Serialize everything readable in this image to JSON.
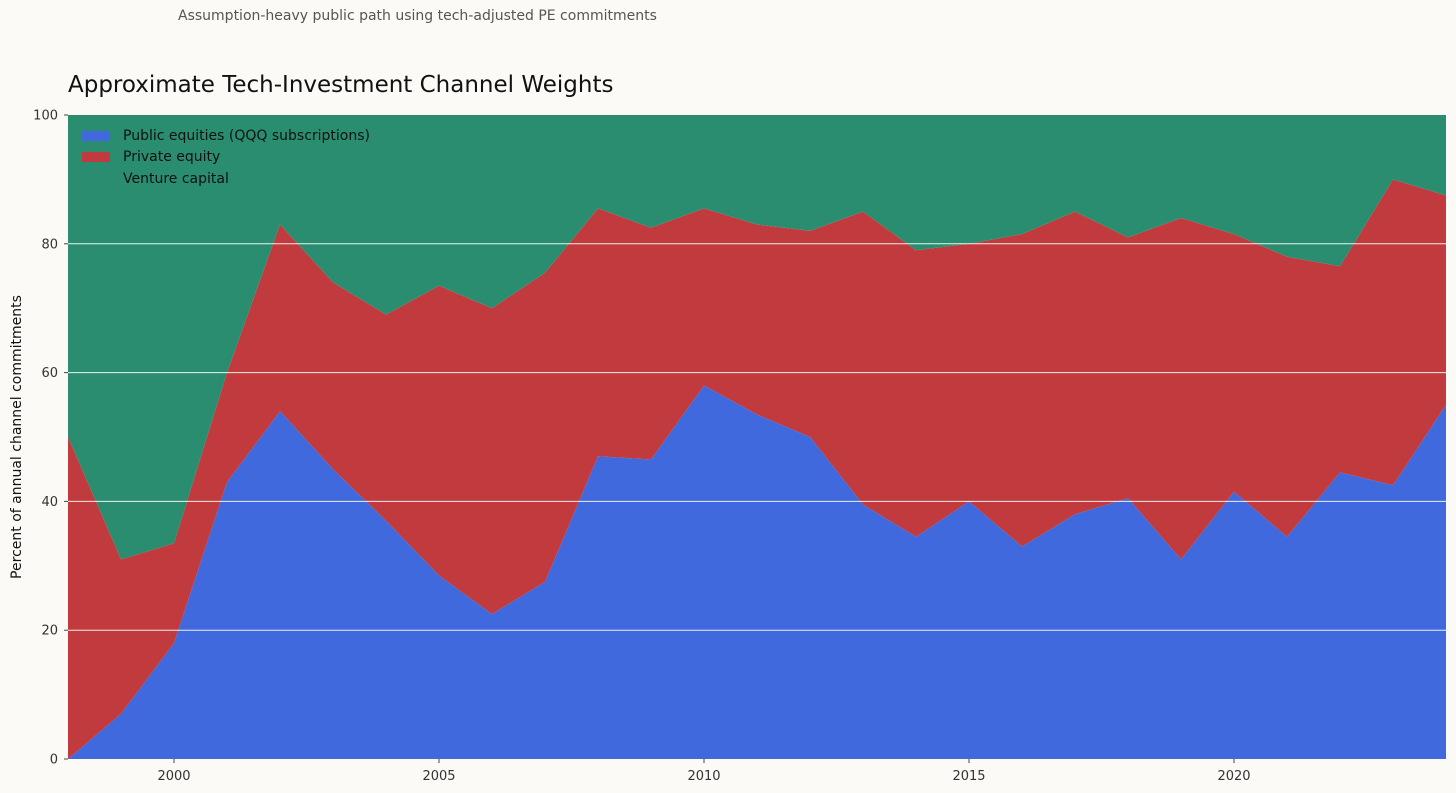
{
  "header": {
    "subtitle": "Assumption-heavy public path using tech-adjusted PE commitments"
  },
  "chart_data": {
    "type": "area",
    "stacked": true,
    "title": "Approximate Tech-Investment Channel Weights",
    "xlabel": "",
    "ylabel": "Percent of annual channel commitments",
    "x": [
      1998,
      1999,
      2000,
      2001,
      2002,
      2003,
      2004,
      2005,
      2006,
      2007,
      2008,
      2009,
      2010,
      2011,
      2012,
      2013,
      2014,
      2015,
      2016,
      2017,
      2018,
      2019,
      2020,
      2021,
      2022,
      2023,
      2024
    ],
    "xlim": [
      1998,
      2024
    ],
    "ylim": [
      0,
      100
    ],
    "xticks": [
      2000,
      2005,
      2010,
      2015,
      2020
    ],
    "yticks": [
      0,
      20,
      40,
      60,
      80,
      100
    ],
    "grid": "horizontal",
    "legend_position": "top-left",
    "series": [
      {
        "name": "Public equities (QQQ subscriptions)",
        "color": "#3f69dc",
        "values": [
          0,
          7,
          18,
          43,
          54,
          45,
          37,
          28.5,
          22.5,
          27.5,
          47,
          46.5,
          58,
          53.5,
          50,
          39.5,
          34.5,
          40,
          33,
          38,
          40.5,
          31,
          41.5,
          34.5,
          44.5,
          42.5,
          55
        ]
      },
      {
        "name": "Private equity",
        "color": "#c13b3e",
        "values": [
          50,
          24,
          15.5,
          17,
          29,
          29,
          32,
          45,
          47.5,
          48,
          38.5,
          36,
          27.5,
          29.5,
          32,
          45.5,
          44.5,
          40,
          48.5,
          47,
          40.5,
          53,
          40,
          43.5,
          32,
          47.5,
          32.5
        ]
      },
      {
        "name": "Venture capital",
        "color": "#2a8d70",
        "values": [
          50,
          69,
          66.5,
          40,
          17,
          26,
          31,
          26.5,
          30,
          24.5,
          14.5,
          17.5,
          14.5,
          17,
          18,
          15,
          21,
          20,
          18.5,
          15,
          19,
          16,
          18.5,
          22,
          23.5,
          10,
          12.5
        ]
      }
    ]
  }
}
